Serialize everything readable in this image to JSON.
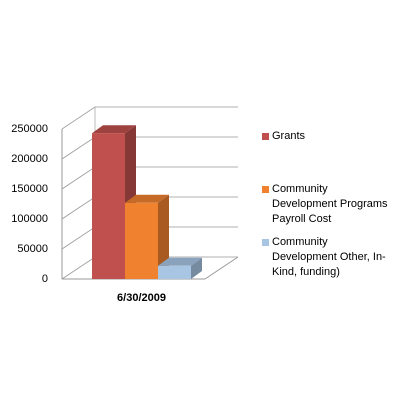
{
  "chart_data": {
    "type": "bar3d",
    "categories": [
      "6/30/2009"
    ],
    "series": [
      {
        "name": "Grants",
        "color": "#c0504d",
        "values": [
          243000
        ]
      },
      {
        "name": "Community Development Programs Payroll Cost",
        "color": "#f0812f",
        "values": [
          127000
        ]
      },
      {
        "name": "Community Development Other, In-Kind, funding)",
        "color": "#a8c6e4",
        "values": [
          22000
        ]
      }
    ],
    "ylim": [
      0,
      250000
    ],
    "yticks": [
      0,
      50000,
      100000,
      150000,
      200000,
      250000
    ],
    "grid": true,
    "legend": "right"
  }
}
